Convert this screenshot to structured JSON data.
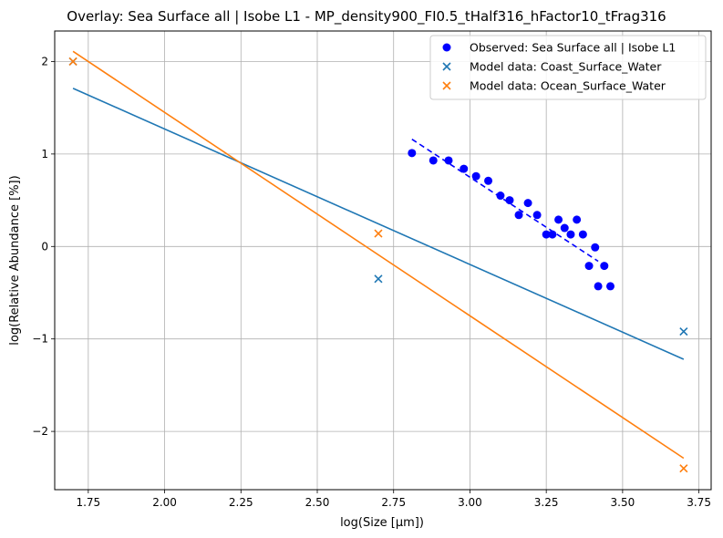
{
  "chart_data": {
    "type": "scatter",
    "title": "Overlay: Sea Surface all | Isobe L1 - MP_density900_FI0.5_tHalf316_hFactor10_tFrag316",
    "xlabel": "log(Size [µm])",
    "ylabel": "log(Relative Abundance [%])",
    "xlim": [
      1.64,
      3.79
    ],
    "ylim": [
      -2.63,
      2.33
    ],
    "xticks": [
      1.75,
      2.0,
      2.25,
      2.5,
      2.75,
      3.0,
      3.25,
      3.5,
      3.75
    ],
    "xtick_labels": [
      "1.75",
      "2.00",
      "2.25",
      "2.50",
      "2.75",
      "3.00",
      "3.25",
      "3.50",
      "3.75"
    ],
    "yticks": [
      -2,
      -1,
      0,
      1,
      2
    ],
    "ytick_labels": [
      "−2",
      "−1",
      "0",
      "1",
      "2"
    ],
    "grid": true,
    "legend_position": "top-right",
    "series": [
      {
        "name": "Observed: Sea Surface all | Isobe L1",
        "kind": "scatter",
        "marker": "circle",
        "color": "#0000ff",
        "x": [
          2.81,
          2.88,
          2.93,
          2.98,
          3.02,
          3.06,
          3.1,
          3.13,
          3.16,
          3.19,
          3.22,
          3.25,
          3.27,
          3.29,
          3.31,
          3.33,
          3.35,
          3.37,
          3.39,
          3.41,
          3.42,
          3.44,
          3.46
        ],
        "y": [
          1.01,
          0.93,
          0.93,
          0.84,
          0.76,
          0.71,
          0.55,
          0.5,
          0.34,
          0.47,
          0.34,
          0.13,
          0.13,
          0.29,
          0.2,
          0.13,
          0.29,
          0.13,
          -0.21,
          -0.01,
          -0.43,
          -0.21,
          -0.43
        ]
      },
      {
        "name": "Observed fit",
        "kind": "line",
        "style": "dashed",
        "color": "#0000ff",
        "x": [
          2.81,
          3.42
        ],
        "y": [
          1.16,
          -0.16
        ]
      },
      {
        "name": "Model data: Coast_Surface_Water",
        "kind": "scatter",
        "marker": "x",
        "color": "#1f77b4",
        "x": [
          1.7,
          2.7,
          3.7
        ],
        "y": [
          2.0,
          -0.35,
          -0.92
        ]
      },
      {
        "name": "Coast fit",
        "kind": "line",
        "style": "solid",
        "color": "#1f77b4",
        "x": [
          1.7,
          3.7
        ],
        "y": [
          1.71,
          -1.22
        ]
      },
      {
        "name": "Model data: Ocean_Surface_Water",
        "kind": "scatter",
        "marker": "x",
        "color": "#ff7f0e",
        "x": [
          1.7,
          2.7,
          3.7
        ],
        "y": [
          2.0,
          0.14,
          -2.4
        ]
      },
      {
        "name": "Ocean fit",
        "kind": "line",
        "style": "solid",
        "color": "#ff7f0e",
        "x": [
          1.7,
          3.7
        ],
        "y": [
          2.11,
          -2.29
        ]
      }
    ],
    "legend_entries": [
      {
        "label": "Observed: Sea Surface all | Isobe L1",
        "marker": "circle",
        "color": "#0000ff"
      },
      {
        "label": "Model data: Coast_Surface_Water",
        "marker": "x",
        "color": "#1f77b4"
      },
      {
        "label": "Model data: Ocean_Surface_Water",
        "marker": "x",
        "color": "#ff7f0e"
      }
    ]
  }
}
